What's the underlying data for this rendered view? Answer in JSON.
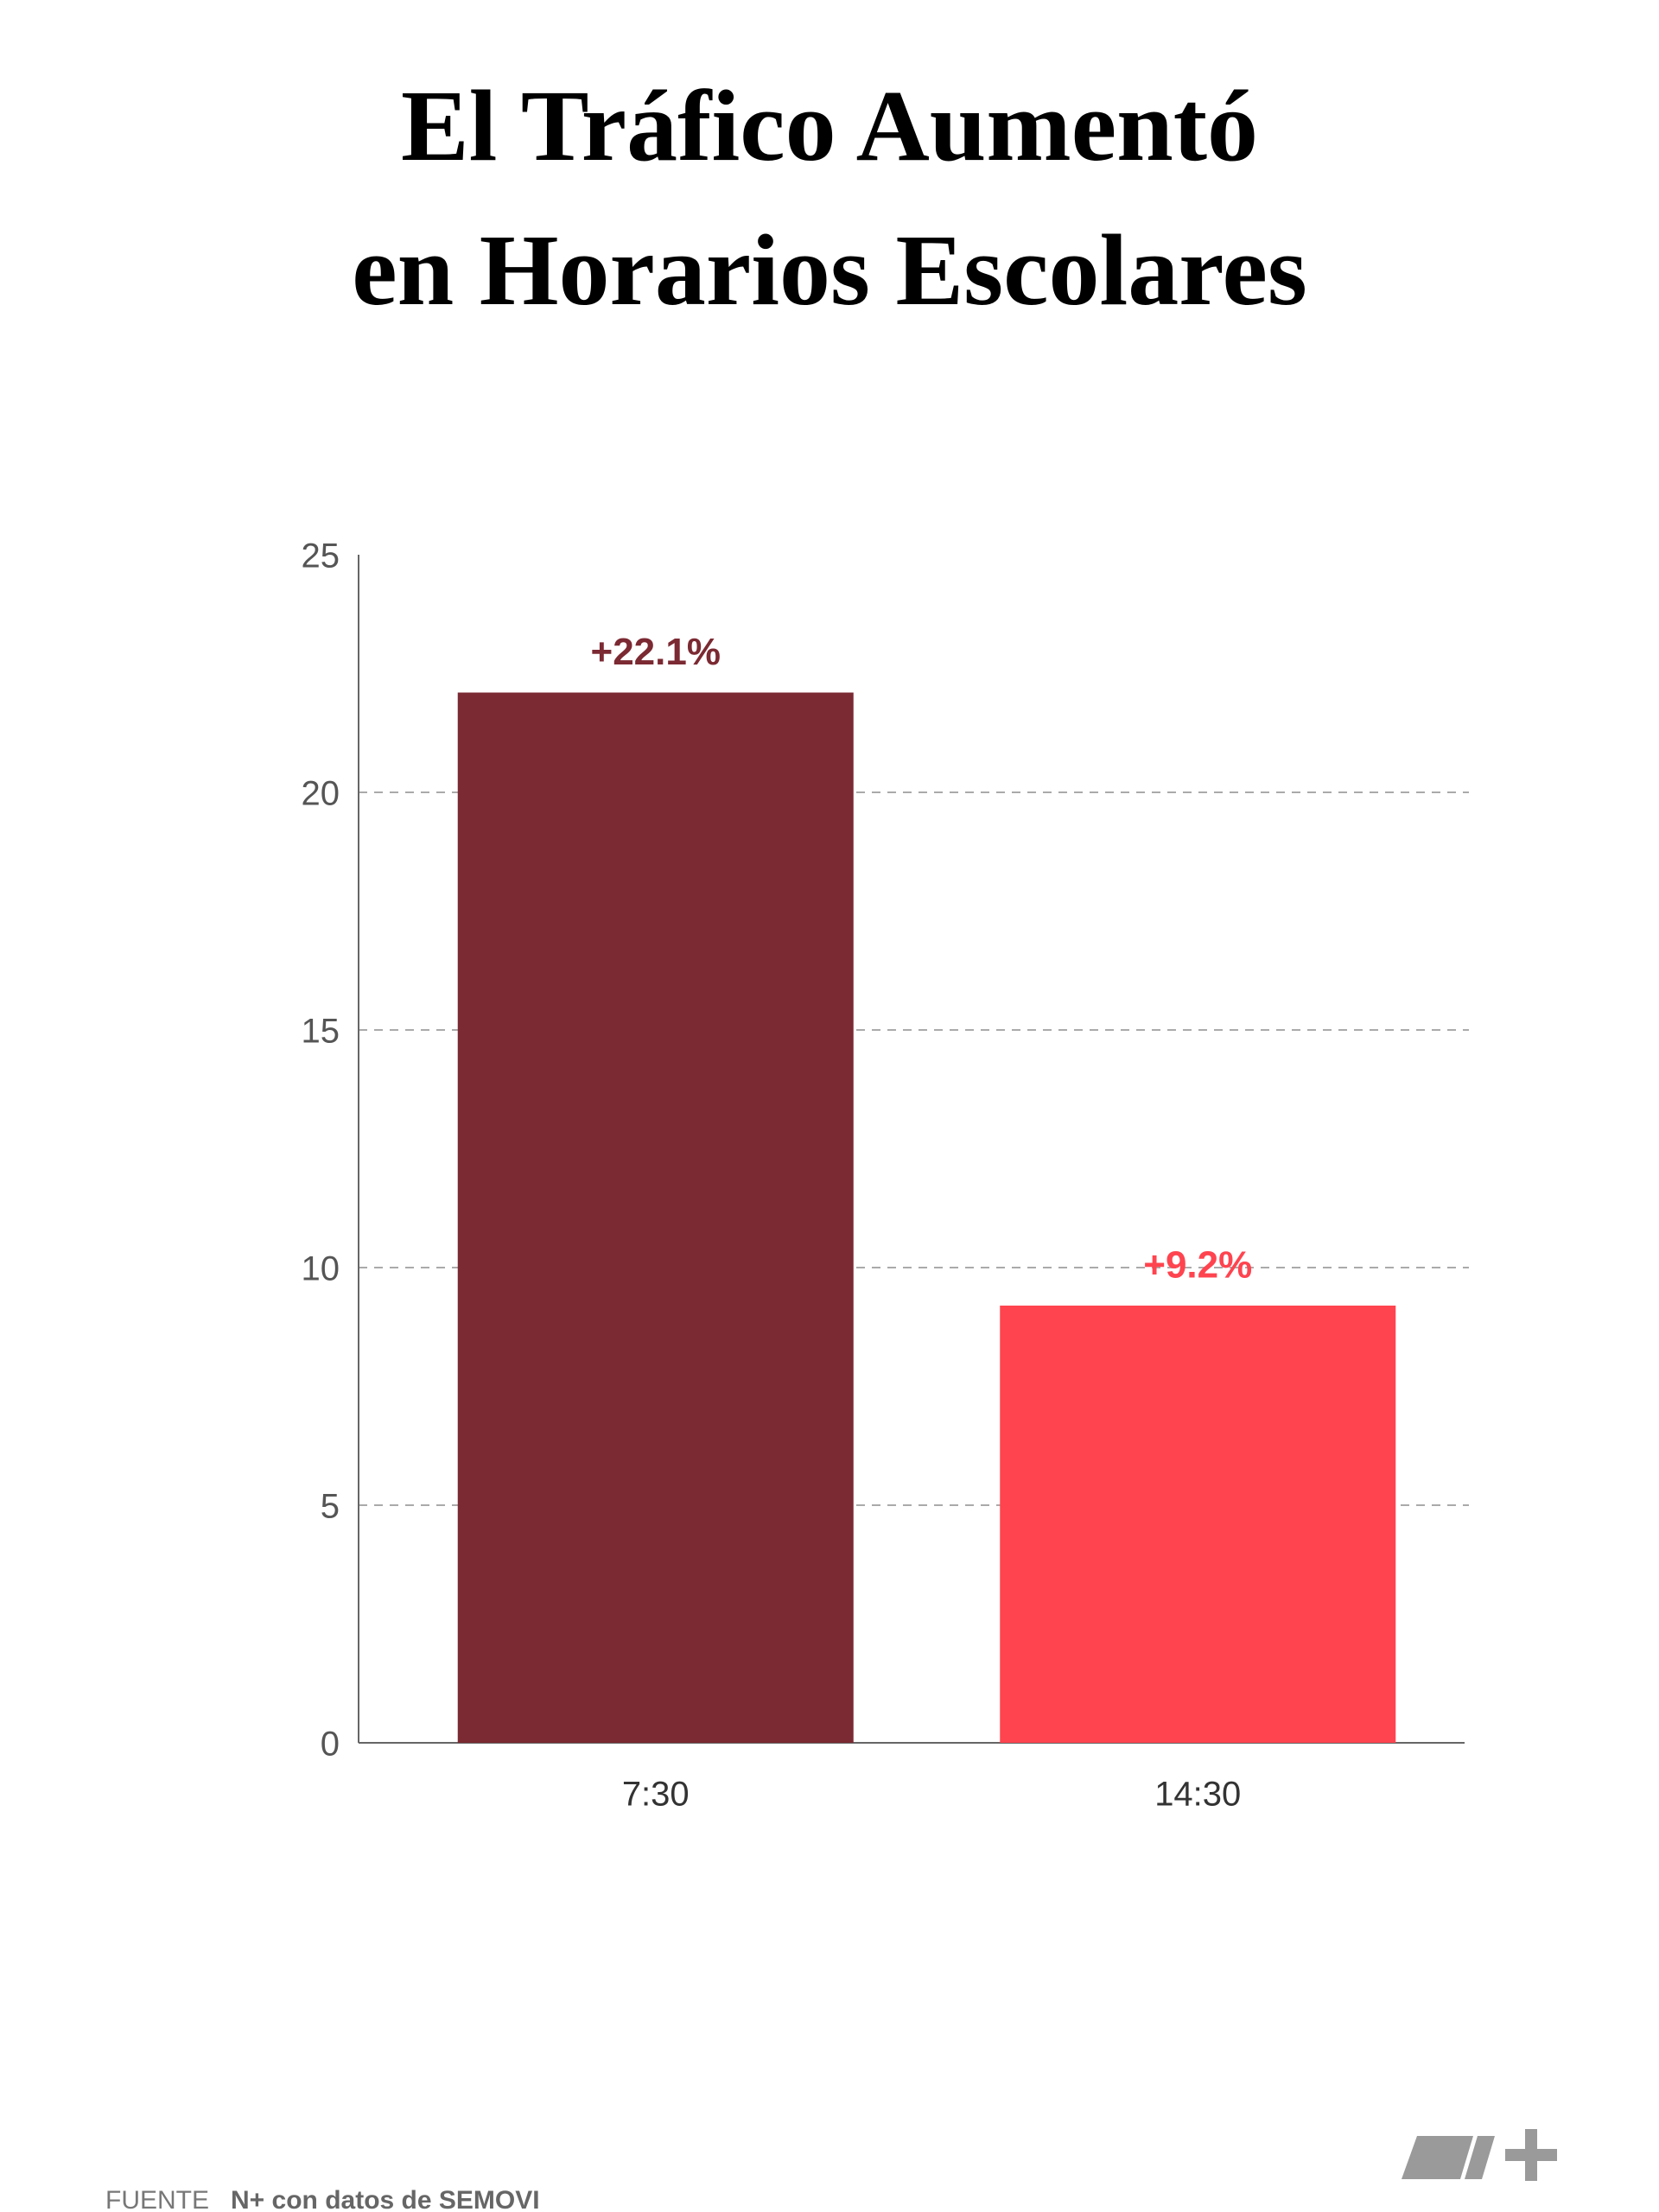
{
  "chart_data": {
    "type": "bar",
    "title": [
      "El Tráfico Aumentó",
      "en Horarios Escolares"
    ],
    "categories": [
      "7:30",
      "14:30"
    ],
    "values": [
      22.1,
      9.2
    ],
    "value_labels": [
      "+22.1%",
      "+9.2%"
    ],
    "colors": [
      "#7b2932",
      "#ff444f"
    ],
    "ylim": [
      0,
      25
    ],
    "yticks": [
      0,
      5,
      10,
      15,
      20,
      25
    ],
    "grid": true,
    "source_label": "FUENTE",
    "source": "N+ con datos de SEMOVI"
  }
}
